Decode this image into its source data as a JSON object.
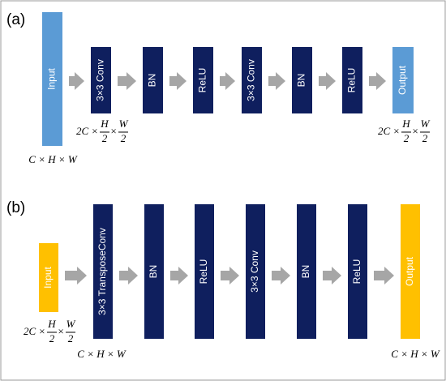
{
  "panels": [
    {
      "label": "(a)",
      "blocks": [
        {
          "label": "Input"
        },
        {
          "label": "3×3 Conv"
        },
        {
          "label": "BN"
        },
        {
          "label": "ReLU"
        },
        {
          "label": "3×3 Conv"
        },
        {
          "label": "BN"
        },
        {
          "label": "ReLU"
        },
        {
          "label": "Output"
        }
      ],
      "dims": [
        {
          "kind": "half",
          "prefix": "2C ×",
          "h_num": "H",
          "h_den": "2",
          "times": "×",
          "w_num": "W",
          "w_den": "2"
        },
        {
          "kind": "full",
          "text": "C × H × W"
        },
        {
          "kind": "half",
          "prefix": "2C ×",
          "h_num": "H",
          "h_den": "2",
          "times": "×",
          "w_num": "W",
          "w_den": "2"
        }
      ]
    },
    {
      "label": "(b)",
      "blocks": [
        {
          "label": "Input"
        },
        {
          "label": "3×3 TransposeConv"
        },
        {
          "label": "BN"
        },
        {
          "label": "ReLU"
        },
        {
          "label": "3×3 Conv"
        },
        {
          "label": "BN"
        },
        {
          "label": "ReLU"
        },
        {
          "label": "Output"
        }
      ],
      "dims": [
        {
          "kind": "half",
          "prefix": "2C ×",
          "h_num": "H",
          "h_den": "2",
          "times": "×",
          "w_num": "W",
          "w_den": "2"
        },
        {
          "kind": "full",
          "text": "C × H × W"
        },
        {
          "kind": "full",
          "text": "C × H × W"
        }
      ]
    }
  ]
}
